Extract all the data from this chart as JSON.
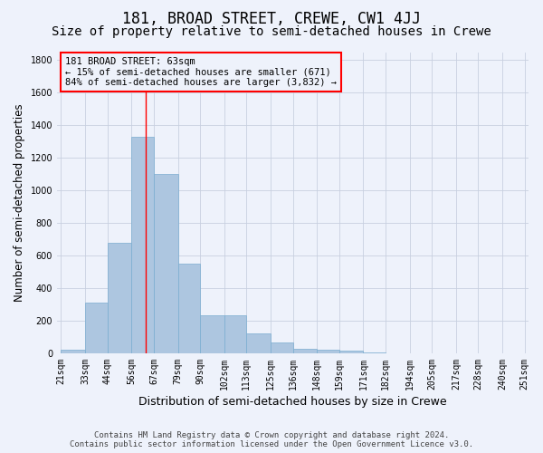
{
  "title": "181, BROAD STREET, CREWE, CW1 4JJ",
  "subtitle": "Size of property relative to semi-detached houses in Crewe",
  "xlabel": "Distribution of semi-detached houses by size in Crewe",
  "ylabel": "Number of semi-detached properties",
  "footer_line1": "Contains HM Land Registry data © Crown copyright and database right 2024.",
  "footer_line2": "Contains public sector information licensed under the Open Government Licence v3.0.",
  "annotation_line1": "181 BROAD STREET: 63sqm",
  "annotation_line2": "← 15% of semi-detached houses are smaller (671)",
  "annotation_line3": "84% of semi-detached houses are larger (3,832) →",
  "bar_color": "#adc6e0",
  "bar_edge_color": "#7aadd0",
  "red_line_x": 63,
  "categories": [
    "21sqm",
    "33sqm",
    "44sqm",
    "56sqm",
    "67sqm",
    "79sqm",
    "90sqm",
    "102sqm",
    "113sqm",
    "125sqm",
    "136sqm",
    "148sqm",
    "159sqm",
    "171sqm",
    "182sqm",
    "194sqm",
    "205sqm",
    "217sqm",
    "228sqm",
    "240sqm",
    "251sqm"
  ],
  "bin_edges": [
    21,
    33,
    44,
    56,
    67,
    79,
    90,
    102,
    113,
    125,
    136,
    148,
    159,
    171,
    182,
    194,
    205,
    217,
    228,
    240,
    251
  ],
  "values": [
    20,
    310,
    680,
    1330,
    1100,
    550,
    235,
    235,
    120,
    65,
    30,
    20,
    15,
    5,
    2,
    1,
    1,
    0,
    0,
    0
  ],
  "ylim": [
    0,
    1850
  ],
  "yticks": [
    0,
    200,
    400,
    600,
    800,
    1000,
    1200,
    1400,
    1600,
    1800
  ],
  "background_color": "#eef2fb",
  "grid_color": "#c8d0e0",
  "title_fontsize": 12,
  "subtitle_fontsize": 10,
  "axis_label_fontsize": 8.5,
  "tick_fontsize": 7,
  "footer_fontsize": 6.5,
  "annotation_fontsize": 7.5
}
